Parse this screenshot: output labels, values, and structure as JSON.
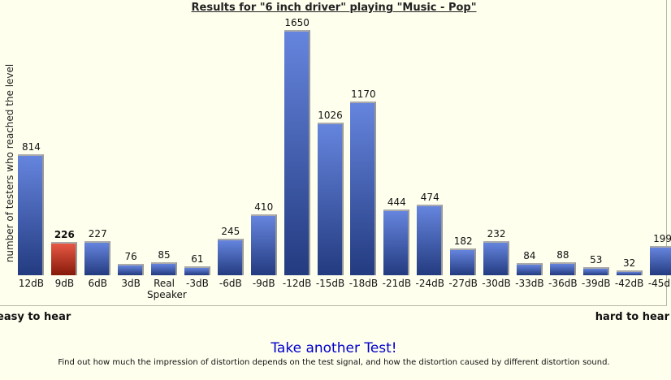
{
  "chart_data": {
    "type": "bar",
    "title": "Results for \"6 inch driver\" playing \"Music - Pop\"",
    "y_label": "number of testers who reached the level",
    "categories": [
      "12dB",
      "9dB",
      "6dB",
      "3dB",
      "Real Speaker",
      "-3dB",
      "-6dB",
      "-9dB",
      "-12dB",
      "-15dB",
      "-18dB",
      "-21dB",
      "-24dB",
      "-27dB",
      "-30dB",
      "-33dB",
      "-36dB",
      "-39dB",
      "-42dB",
      "-45dB"
    ],
    "values": [
      814,
      226,
      227,
      76,
      85,
      61,
      245,
      410,
      1650,
      1026,
      1170,
      444,
      474,
      182,
      232,
      84,
      88,
      53,
      32,
      199
    ],
    "color": "#3a62d4",
    "highlight_color": "#e02a10",
    "highlight_index": 1,
    "ylim": [
      0,
      1650
    ],
    "annotations": [
      "easy to hear",
      "hard to hear"
    ]
  },
  "footer": {
    "link": "Take another Test!",
    "description": "Find out how much the impression of distortion depends on the test signal, and how the distortion caused by different distortion sound."
  }
}
